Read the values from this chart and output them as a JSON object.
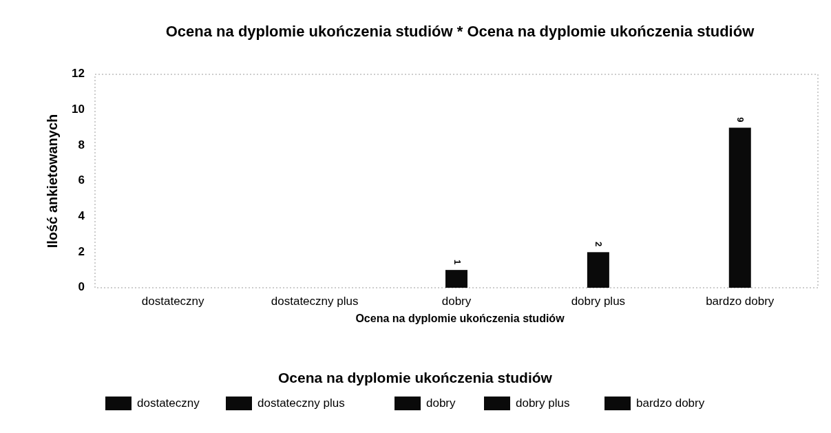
{
  "chart_data": {
    "type": "bar",
    "title": "Ocena na dyplomie ukończenia studiów * Ocena na dyplomie ukończenia studiów",
    "xlabel": "Ocena na dyplomie ukończenia studiów",
    "ylabel": "Ilość ankietowanych",
    "legend_title": "Ocena na dyplomie ukończenia studiów",
    "categories": [
      "dostateczny",
      "dostateczny plus",
      "dobry",
      "dobry plus",
      "bardzo dobry"
    ],
    "series": [
      {
        "name": "dostateczny",
        "color": "#0a0a0a",
        "values": [
          null,
          null,
          null,
          null,
          null
        ]
      },
      {
        "name": "dostateczny plus",
        "color": "#0a0a0a",
        "values": [
          null,
          null,
          null,
          null,
          null
        ]
      },
      {
        "name": "dobry",
        "color": "#0a0a0a",
        "values": [
          null,
          null,
          1,
          null,
          null
        ]
      },
      {
        "name": "dobry plus",
        "color": "#0a0a0a",
        "values": [
          null,
          null,
          null,
          2,
          null
        ]
      },
      {
        "name": "bardzo dobry",
        "color": "#0a0a0a",
        "values": [
          null,
          null,
          null,
          null,
          9
        ]
      }
    ],
    "ylim": [
      0,
      12
    ],
    "yticks": [
      0,
      2,
      4,
      6,
      8,
      10,
      12
    ],
    "data_labels": true,
    "legend": "bottom"
  }
}
